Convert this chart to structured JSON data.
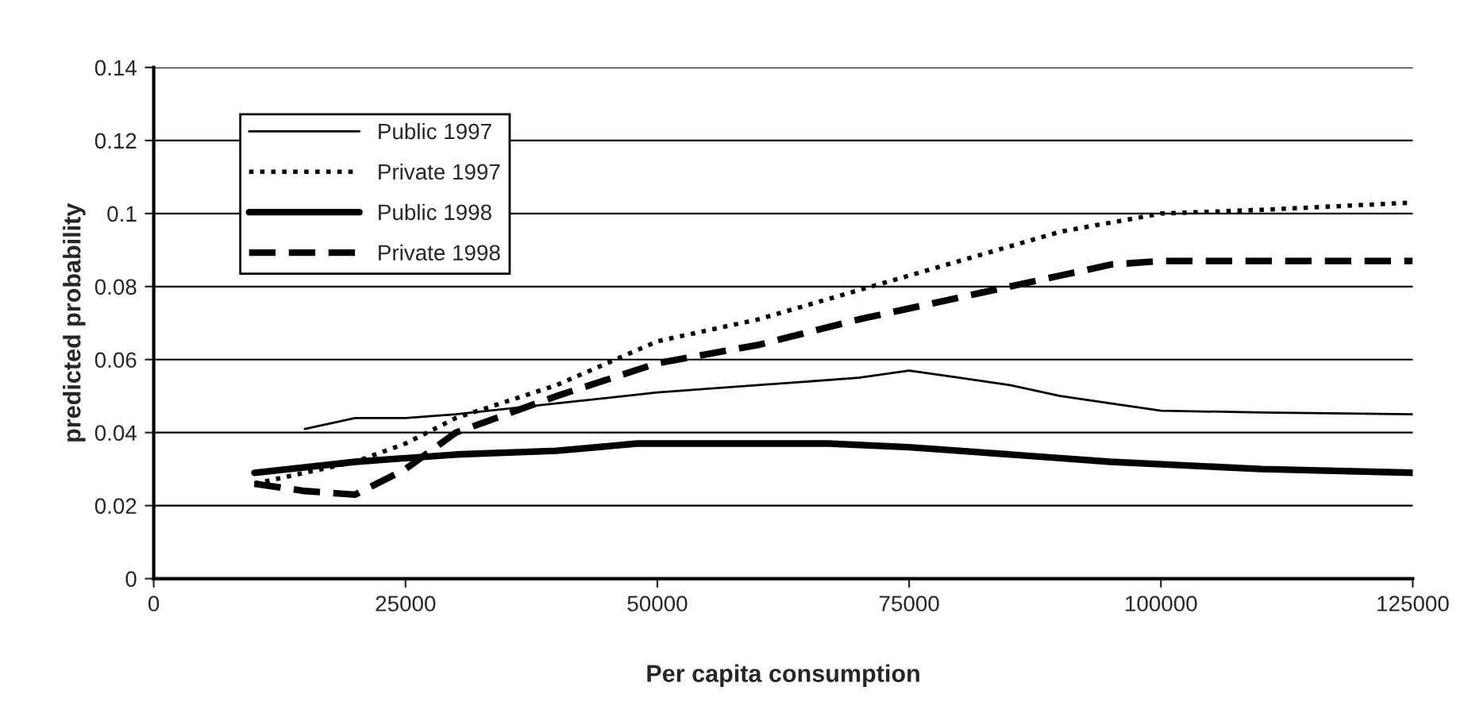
{
  "chart_data": {
    "type": "line",
    "xlabel": "Per capita consumption",
    "ylabel": "predicted probability",
    "xlim": [
      0,
      125000
    ],
    "xticks": [
      0,
      25000,
      50000,
      75000,
      100000,
      125000
    ],
    "ylim": [
      0,
      0.14
    ],
    "yticks": [
      0,
      0.02,
      0.04,
      0.06,
      0.08,
      0.1,
      0.12,
      0.14
    ],
    "grid": "y",
    "legend": "top left",
    "marker": "none",
    "series": [
      {
        "name": "Public 1997",
        "color": "#000000",
        "line_style": "solid",
        "x": [
          15000,
          20000,
          25000,
          30000,
          40000,
          50000,
          60000,
          70000,
          75000,
          80000,
          85000,
          90000,
          100000,
          110000,
          125000
        ],
        "values": [
          0.041,
          0.044,
          0.044,
          0.045,
          0.048,
          0.051,
          0.053,
          0.055,
          0.057,
          0.055,
          0.053,
          0.05,
          0.046,
          0.0455,
          0.045
        ]
      },
      {
        "name": "Private 1997",
        "color": "#000000",
        "line_style": "dotted",
        "x": [
          10000,
          15000,
          20000,
          25000,
          30000,
          40000,
          50000,
          60000,
          70000,
          80000,
          90000,
          100000,
          110000,
          125000
        ],
        "values": [
          0.026,
          0.029,
          0.032,
          0.037,
          0.044,
          0.053,
          0.065,
          0.071,
          0.079,
          0.087,
          0.095,
          0.1,
          0.101,
          0.103
        ]
      },
      {
        "name": "Public 1998",
        "color": "#000000",
        "line_style": "solid",
        "x": [
          10000,
          20000,
          30000,
          40000,
          48000,
          67000,
          75000,
          80000,
          90000,
          95000,
          110000,
          125000
        ],
        "values": [
          0.029,
          0.032,
          0.034,
          0.035,
          0.037,
          0.037,
          0.036,
          0.035,
          0.033,
          0.032,
          0.03,
          0.029
        ]
      },
      {
        "name": "Private 1998",
        "color": "#000000",
        "line_style": "dashed",
        "x": [
          10000,
          15000,
          20000,
          25000,
          30000,
          40000,
          50000,
          60000,
          70000,
          80000,
          90000,
          95000,
          100000,
          125000
        ],
        "values": [
          0.026,
          0.024,
          0.023,
          0.03,
          0.04,
          0.05,
          0.059,
          0.064,
          0.071,
          0.077,
          0.083,
          0.086,
          0.087,
          0.087
        ]
      }
    ]
  }
}
